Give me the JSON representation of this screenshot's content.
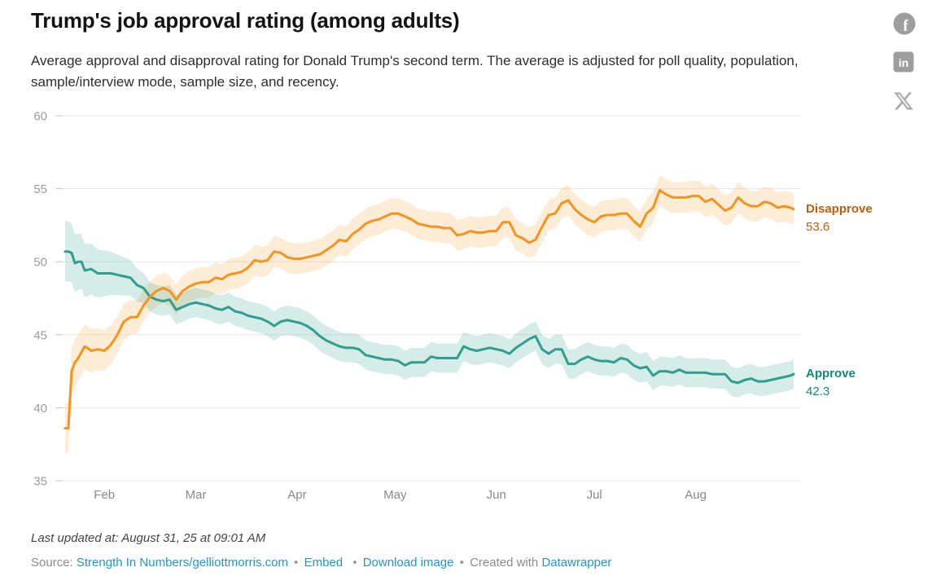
{
  "header": {
    "title": "Trump's job approval rating (among adults)",
    "subtitle": "Average approval and disapproval rating for Donald Trump's second term. The average is adjusted for poll quality, population, sample/interview mode, sample size, and recency."
  },
  "share": {
    "icon_color": "#9e9e9e",
    "x_icon_color": "#a9a9a9",
    "facebook_glyph": "f",
    "linkedin_glyph": "in"
  },
  "chart_data": {
    "type": "line",
    "title": "Trump's job approval rating (among adults)",
    "x_unit": "day (0 = first day shown, late January)",
    "ylim": [
      35,
      60
    ],
    "y_ticks": [
      60,
      55,
      50,
      45,
      40,
      35
    ],
    "x_ticks": [
      {
        "label": "Feb",
        "day": 12
      },
      {
        "label": "Mar",
        "day": 40
      },
      {
        "label": "Apr",
        "day": 71
      },
      {
        "label": "May",
        "day": 101
      },
      {
        "label": "Jun",
        "day": 132
      },
      {
        "label": "Jul",
        "day": 162
      },
      {
        "label": "Aug",
        "day": 193
      }
    ],
    "grid": "horizontal",
    "legend_position": "right-edge-labels",
    "gridline_color": "#e7e7e7",
    "tick_color": "#c9c9c9",
    "axis_label_color": "#9b9b9b",
    "x": [
      0,
      1,
      2,
      3,
      4,
      5,
      6,
      8,
      10,
      12,
      14,
      16,
      18,
      20,
      22,
      24,
      26,
      28,
      30,
      32,
      34,
      36,
      38,
      40,
      42,
      44,
      46,
      48,
      50,
      52,
      54,
      56,
      58,
      60,
      62,
      64,
      66,
      68,
      70,
      72,
      74,
      76,
      78,
      80,
      82,
      84,
      86,
      88,
      90,
      92,
      94,
      96,
      98,
      100,
      102,
      104,
      106,
      108,
      110,
      112,
      114,
      116,
      118,
      120,
      122,
      124,
      126,
      128,
      130,
      132,
      134,
      136,
      138,
      140,
      142,
      144,
      146,
      148,
      150,
      152,
      154,
      156,
      158,
      160,
      162,
      164,
      166,
      168,
      170,
      172,
      174,
      176,
      178,
      180,
      182,
      184,
      186,
      188,
      190,
      192,
      194,
      196,
      198,
      200,
      202,
      204,
      206,
      208,
      210,
      212,
      214,
      216,
      218,
      220,
      222,
      223
    ],
    "series": [
      {
        "name": "Disapprove",
        "end_value": 53.6,
        "color": "#f6931d",
        "band_color": "rgba(246,147,29,0.18)",
        "label_color": "#c05c0d",
        "band_halfwidth": 1.05,
        "band_halfwidth_start": 1.7,
        "values": [
          38.6,
          38.6,
          42.5,
          43.1,
          43.4,
          43.8,
          44.2,
          43.9,
          44.0,
          43.9,
          44.3,
          45.0,
          45.9,
          46.2,
          46.2,
          47.0,
          47.6,
          48.0,
          48.2,
          48.0,
          47.4,
          48.0,
          48.3,
          48.5,
          48.6,
          48.6,
          48.9,
          48.8,
          49.1,
          49.2,
          49.3,
          49.6,
          50.1,
          50.0,
          50.1,
          50.7,
          50.6,
          50.3,
          50.2,
          50.2,
          50.3,
          50.4,
          50.5,
          50.8,
          51.1,
          51.5,
          51.4,
          51.9,
          52.2,
          52.6,
          52.8,
          52.9,
          53.1,
          53.3,
          53.3,
          53.1,
          52.9,
          52.6,
          52.5,
          52.4,
          52.4,
          52.3,
          52.3,
          51.8,
          51.9,
          52.1,
          52.0,
          52.0,
          52.1,
          52.1,
          52.7,
          52.7,
          51.8,
          51.6,
          51.3,
          51.5,
          52.4,
          53.2,
          53.3,
          54.0,
          54.2,
          53.6,
          53.2,
          52.9,
          52.7,
          53.1,
          53.2,
          53.2,
          53.3,
          53.3,
          52.8,
          52.4,
          53.3,
          53.7,
          54.9,
          54.6,
          54.4,
          54.4,
          54.4,
          54.5,
          54.5,
          54.1,
          54.3,
          53.9,
          53.5,
          53.7,
          54.4,
          54.0,
          53.8,
          53.8,
          54.1,
          54.0,
          53.7,
          53.8,
          53.7,
          53.6
        ]
      },
      {
        "name": "Approve",
        "end_value": 42.3,
        "color": "#2f9e8c",
        "band_color": "rgba(47,158,140,0.20)",
        "label_color": "#0f8a7b",
        "band_halfwidth": 1.0,
        "band_halfwidth_start": 2.1,
        "values": [
          50.7,
          50.7,
          50.6,
          49.9,
          50.0,
          50.0,
          49.4,
          49.5,
          49.2,
          49.2,
          49.2,
          49.1,
          49.0,
          48.9,
          48.4,
          48.2,
          47.6,
          47.4,
          47.3,
          47.4,
          46.7,
          46.9,
          47.1,
          47.2,
          47.1,
          47.0,
          46.8,
          46.7,
          46.9,
          46.6,
          46.5,
          46.3,
          46.2,
          46.1,
          45.9,
          45.6,
          45.9,
          46.0,
          45.9,
          45.8,
          45.6,
          45.3,
          44.9,
          44.6,
          44.4,
          44.2,
          44.1,
          44.1,
          44.0,
          43.6,
          43.5,
          43.4,
          43.3,
          43.3,
          43.2,
          42.9,
          43.1,
          43.1,
          43.1,
          43.5,
          43.4,
          43.4,
          43.4,
          43.4,
          44.2,
          44.0,
          43.9,
          44.0,
          44.1,
          44.0,
          43.9,
          43.7,
          44.1,
          44.4,
          44.7,
          44.9,
          44.0,
          43.7,
          44.0,
          44.0,
          43.0,
          43.0,
          43.3,
          43.5,
          43.3,
          43.2,
          43.2,
          43.1,
          43.4,
          43.3,
          42.9,
          42.7,
          42.8,
          42.2,
          42.5,
          42.5,
          42.4,
          42.6,
          42.4,
          42.4,
          42.4,
          42.4,
          42.3,
          42.3,
          42.3,
          41.8,
          41.7,
          41.9,
          42.0,
          41.8,
          41.8,
          41.9,
          42.0,
          42.1,
          42.2,
          42.3
        ]
      }
    ]
  },
  "annotations": {
    "disapprove_label": "Disapprove",
    "disapprove_value": "53.6",
    "approve_label": "Approve",
    "approve_value": "42.3"
  },
  "footer": {
    "last_updated": "Last updated at: August 31, 25 at 09:01 AM",
    "source_label": "Source:",
    "source_link_text": "Strength In Numbers/gelliottmorris.com",
    "sep": "•",
    "embed_label": "Embed",
    "download_label": "Download image",
    "created_with": "Created with",
    "datawrapper_label": "Datawrapper",
    "link_color": "#1f96d4"
  }
}
